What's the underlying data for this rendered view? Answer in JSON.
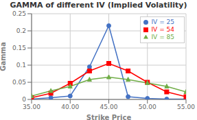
{
  "chart_data": {
    "type": "line",
    "title": "GAMMA  of different IV (Implied Volatility)",
    "xlabel": "Strike Price",
    "ylabel": "Gamma",
    "x": [
      35.0,
      37.5,
      40.0,
      42.5,
      45.0,
      47.5,
      50.0,
      52.5,
      55.0
    ],
    "xlim": [
      35.0,
      55.0
    ],
    "ylim": [
      0,
      0.25
    ],
    "xticks": [
      {
        "value": 35.0,
        "label": "35.00"
      },
      {
        "value": 40.0,
        "label": "40.00"
      },
      {
        "value": 45.0,
        "label": "45.00"
      },
      {
        "value": 50.0,
        "label": "50.00"
      },
      {
        "value": 55.0,
        "label": "55.00"
      }
    ],
    "yticks": [
      0,
      0.05,
      0.1,
      0.15,
      0.2,
      0.25
    ],
    "grid": true,
    "legend": "upper right",
    "series": [
      {
        "name": "IV = 25",
        "color": "#4472C4",
        "marker": "circle",
        "values": [
          0.001,
          0.005,
          0.01,
          0.095,
          0.215,
          0.008,
          0.003,
          0.001,
          0.001
        ]
      },
      {
        "name": "IV = 54",
        "color": "#FF0000",
        "marker": "square",
        "values": [
          0.005,
          0.018,
          0.047,
          0.083,
          0.105,
          0.083,
          0.05,
          0.022,
          0.008
        ]
      },
      {
        "name": "IV = 85",
        "color": "#70AD47",
        "marker": "triangle",
        "values": [
          0.01,
          0.025,
          0.038,
          0.058,
          0.065,
          0.058,
          0.048,
          0.038,
          0.022
        ]
      }
    ]
  }
}
